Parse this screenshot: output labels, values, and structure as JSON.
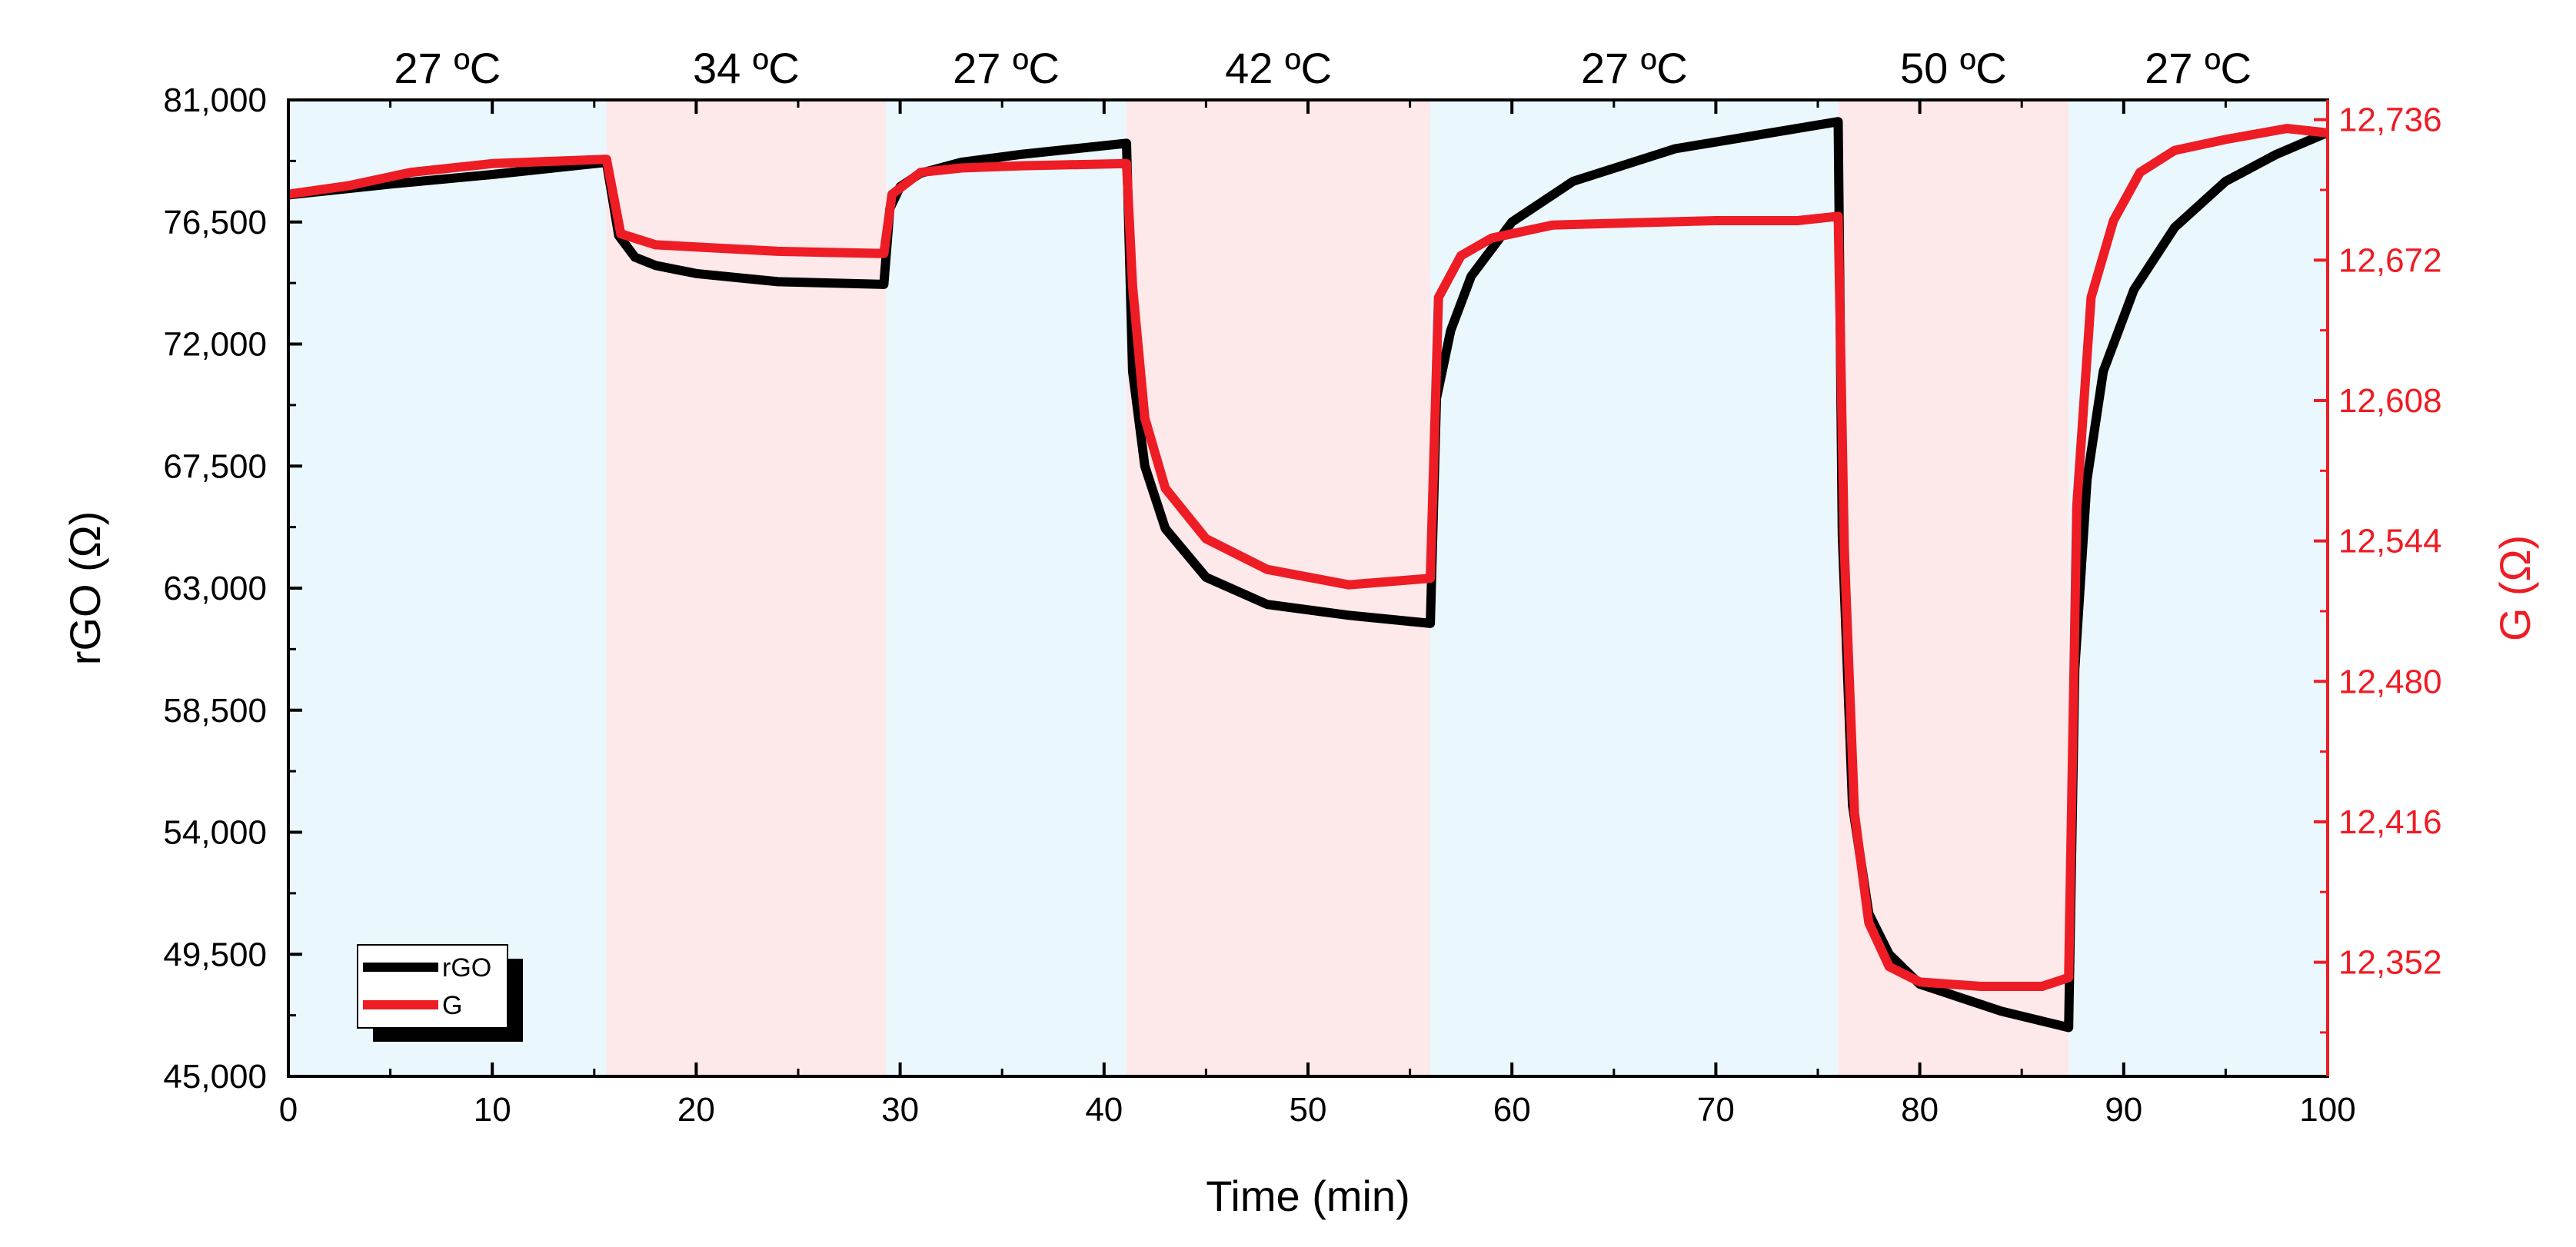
{
  "chart_data": {
    "type": "line",
    "xlabel": "Time (min)",
    "ylabel_left": "rGO (Ω)",
    "ylabel_right": "G (Ω)",
    "xlim": [
      0,
      100
    ],
    "ylim_left": [
      45000,
      81000
    ],
    "ylim_right": [
      12300,
      12745
    ],
    "x_ticks": [
      0,
      10,
      20,
      30,
      40,
      50,
      60,
      70,
      80,
      90,
      100
    ],
    "x_tick_labels": [
      "0",
      "10",
      "20",
      "30",
      "40",
      "50",
      "60",
      "70",
      "80",
      "90",
      "100"
    ],
    "y_left_ticks": [
      45000,
      49500,
      54000,
      58500,
      63000,
      67500,
      72000,
      76500,
      81000
    ],
    "y_left_tick_labels": [
      "45,000",
      "49,500",
      "54,000",
      "58,500",
      "63,000",
      "67,500",
      "72,000",
      "76,500",
      "81,000"
    ],
    "y_right_ticks": [
      12352,
      12416,
      12480,
      12544,
      12608,
      12672,
      12736
    ],
    "y_right_tick_labels": [
      "12,352",
      "12,416",
      "12,480",
      "12,544",
      "12,608",
      "12,672",
      "12,736"
    ],
    "bands": [
      {
        "label": "27 ºC",
        "start": 0,
        "end": 15.6,
        "kind": "cool"
      },
      {
        "label": "34 ºC",
        "start": 15.6,
        "end": 29.3,
        "kind": "warm"
      },
      {
        "label": "27 ºC",
        "start": 29.3,
        "end": 41.1,
        "kind": "cool"
      },
      {
        "label": "42 ºC",
        "start": 41.1,
        "end": 56.0,
        "kind": "warm"
      },
      {
        "label": "27 ºC",
        "start": 56.0,
        "end": 76.0,
        "kind": "cool"
      },
      {
        "label": "50 ºC",
        "start": 76.0,
        "end": 87.3,
        "kind": "warm"
      },
      {
        "label": "27 ºC",
        "start": 87.3,
        "end": 100,
        "kind": "cool"
      }
    ],
    "series": [
      {
        "name": "rGO",
        "axis": "left",
        "color": "#000000",
        "x": [
          0,
          5,
          10,
          15.6,
          16.2,
          17,
          18,
          20,
          24,
          29.2,
          29.5,
          30,
          31,
          33,
          36,
          41.1,
          41.4,
          42,
          43,
          45,
          48,
          52,
          56.0,
          56.3,
          57,
          58,
          60,
          63,
          68,
          72,
          76.0,
          76.2,
          76.7,
          77.5,
          78.5,
          80,
          82,
          84,
          87.3,
          87.6,
          88.2,
          89,
          90.5,
          92.5,
          95,
          97.5,
          100
        ],
        "values": [
          77500,
          77900,
          78250,
          78700,
          76000,
          75200,
          74900,
          74600,
          74300,
          74200,
          77000,
          77800,
          78300,
          78700,
          79000,
          79400,
          71000,
          67500,
          65200,
          63400,
          62400,
          62000,
          61700,
          70000,
          72500,
          74500,
          76500,
          78000,
          79200,
          79700,
          80200,
          65000,
          55000,
          51000,
          49500,
          48400,
          47900,
          47400,
          46800,
          60000,
          67000,
          71000,
          74000,
          76300,
          78000,
          79000,
          79800
        ]
      },
      {
        "name": "G",
        "axis": "right",
        "color": "#ee1c24",
        "x": [
          0,
          3,
          6,
          10,
          15.6,
          16.3,
          18,
          20,
          24,
          29.2,
          29.6,
          31,
          33,
          36,
          41.1,
          41.4,
          42,
          43,
          45,
          48,
          52,
          56.0,
          56.4,
          57.5,
          59,
          62,
          66,
          70,
          74,
          76.0,
          76.3,
          76.8,
          77.5,
          78.5,
          80,
          83,
          86,
          87.3,
          87.7,
          88.4,
          89.5,
          90.8,
          92.5,
          95,
          98,
          100
        ],
        "values": [
          12702,
          12706,
          12712,
          12716,
          12718,
          12684,
          12679,
          12678,
          12676,
          12675,
          12702,
          12712,
          12714,
          12715,
          12716,
          12660,
          12600,
          12568,
          12545,
          12531,
          12524,
          12527,
          12655,
          12674,
          12682,
          12688,
          12689,
          12690,
          12690,
          12692,
          12540,
          12420,
          12370,
          12350,
          12343,
          12341,
          12341,
          12345,
          12560,
          12655,
          12690,
          12712,
          12722,
          12727,
          12732,
          12730
        ]
      }
    ],
    "legend": {
      "position": "bottom-left",
      "entries": [
        "rGO",
        "G"
      ]
    }
  }
}
